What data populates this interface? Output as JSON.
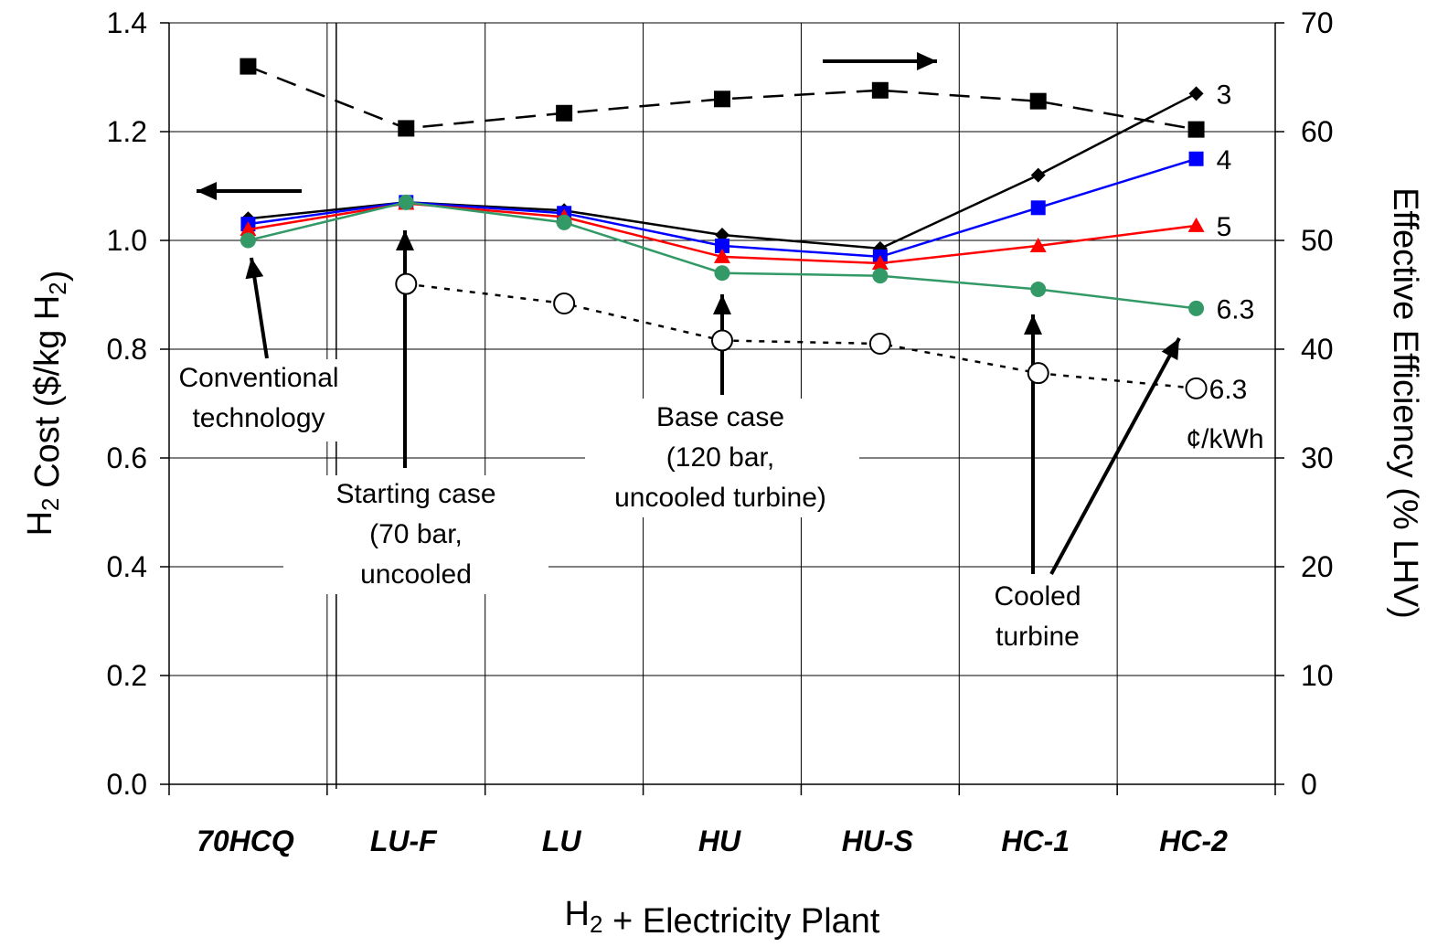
{
  "chart_data": {
    "type": "line",
    "categories": [
      "70HCQ",
      "LU-F",
      "LU",
      "HU",
      "HU-S",
      "HC-1",
      "HC-2"
    ],
    "xlabel": "H2 + Electricity Plant",
    "ylabel": "H2 Cost ($/kg H2)",
    "y2label": "Effective Efficiency (% LHV)",
    "ylim": [
      0,
      1.4
    ],
    "y2lim": [
      0,
      70
    ],
    "yticks": [
      "0.0",
      "0.2",
      "0.4",
      "0.6",
      "0.8",
      "1.0",
      "1.2",
      "1.4"
    ],
    "y2ticks": [
      "0",
      "10",
      "20",
      "30",
      "40",
      "50",
      "60",
      "70"
    ],
    "grid": true,
    "series": [
      {
        "axis": "left",
        "color": "#000000",
        "marker": "diamond",
        "end_label": "3",
        "values": [
          1.04,
          1.07,
          1.055,
          1.01,
          0.985,
          1.12,
          1.27
        ]
      },
      {
        "axis": "left",
        "color": "#0000ff",
        "marker": "square",
        "end_label": "4",
        "values": [
          1.03,
          1.07,
          1.05,
          0.99,
          0.97,
          1.06,
          1.15
        ]
      },
      {
        "axis": "left",
        "color": "#ff0000",
        "marker": "triangle",
        "end_label": "5",
        "values": [
          1.02,
          1.068,
          1.043,
          0.97,
          0.958,
          0.99,
          1.027
        ]
      },
      {
        "axis": "left",
        "color": "#339966",
        "marker": "circle",
        "end_label": "6.3",
        "values": [
          1.0,
          1.07,
          1.033,
          0.94,
          0.935,
          0.91,
          0.875
        ]
      },
      {
        "axis": "right",
        "color": "#000000",
        "marker": "filled-square",
        "dash": "long",
        "end_label": "",
        "values": [
          66,
          60.3,
          61.7,
          63,
          63.8,
          62.8,
          60.2
        ]
      },
      {
        "axis": "right",
        "color": "#000000",
        "marker": "open-circle",
        "dash": "dotted",
        "end_label": "6.3",
        "values": [
          null,
          46,
          44.2,
          40.8,
          40.5,
          37.8,
          36.4
        ]
      }
    ],
    "price_unit": "¢/kWh",
    "annotations": [
      {
        "id": "conventional",
        "lines": [
          "Conventional",
          "technology"
        ]
      },
      {
        "id": "starting",
        "lines": [
          "Starting case",
          "(70 bar,",
          "uncooled"
        ]
      },
      {
        "id": "base",
        "lines": [
          "Base case",
          "(120 bar,",
          "uncooled turbine)"
        ]
      },
      {
        "id": "cooled",
        "lines": [
          "Cooled",
          "turbine"
        ]
      }
    ]
  }
}
